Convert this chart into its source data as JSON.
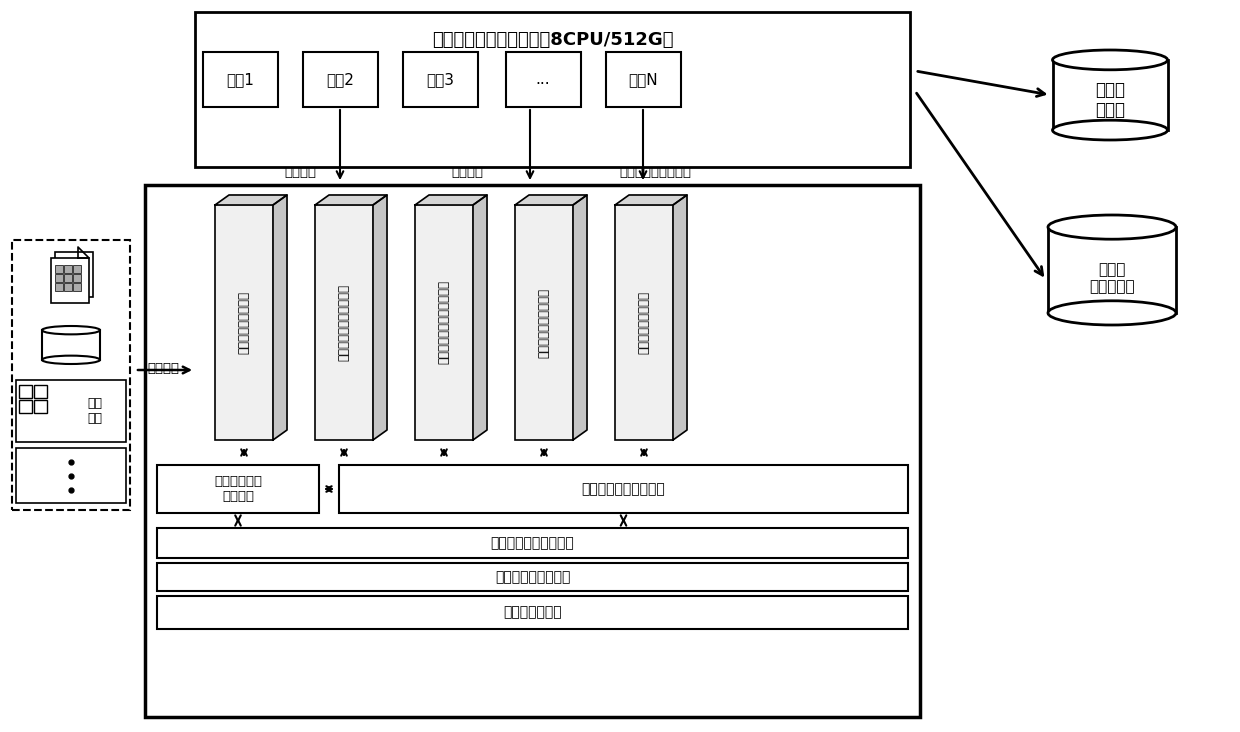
{
  "title": "内存事务型数据库集群（8CPU/512G）",
  "nodes": [
    "节点1",
    "节点2",
    "节点3",
    "...",
    "节点N"
  ],
  "services": [
    "数据文件解析微服务",
    "多线程处理加工消息队列",
    "加工组件流程编排并行处理",
    "内存数据库集资源监控",
    "数据持久化存储管理"
  ],
  "label_data_write": "数据读写",
  "label_perf_monitor": "性能监控",
  "label_persist_ctrl": "数据持久化同步控制",
  "box1_text": "数据采集任务\n调度管理",
  "box2_text": "数据处理监控自动优化",
  "bar1_text": "数据处理日志管理服务",
  "bar2_text": "服务注册与发现管理",
  "bar3_text": "虚拟化容器引擎",
  "left_label": "数据采集",
  "db1_text": "集中式\n数据库",
  "db2_text": "分布式\n数据库集群",
  "bg_color": "#ffffff"
}
